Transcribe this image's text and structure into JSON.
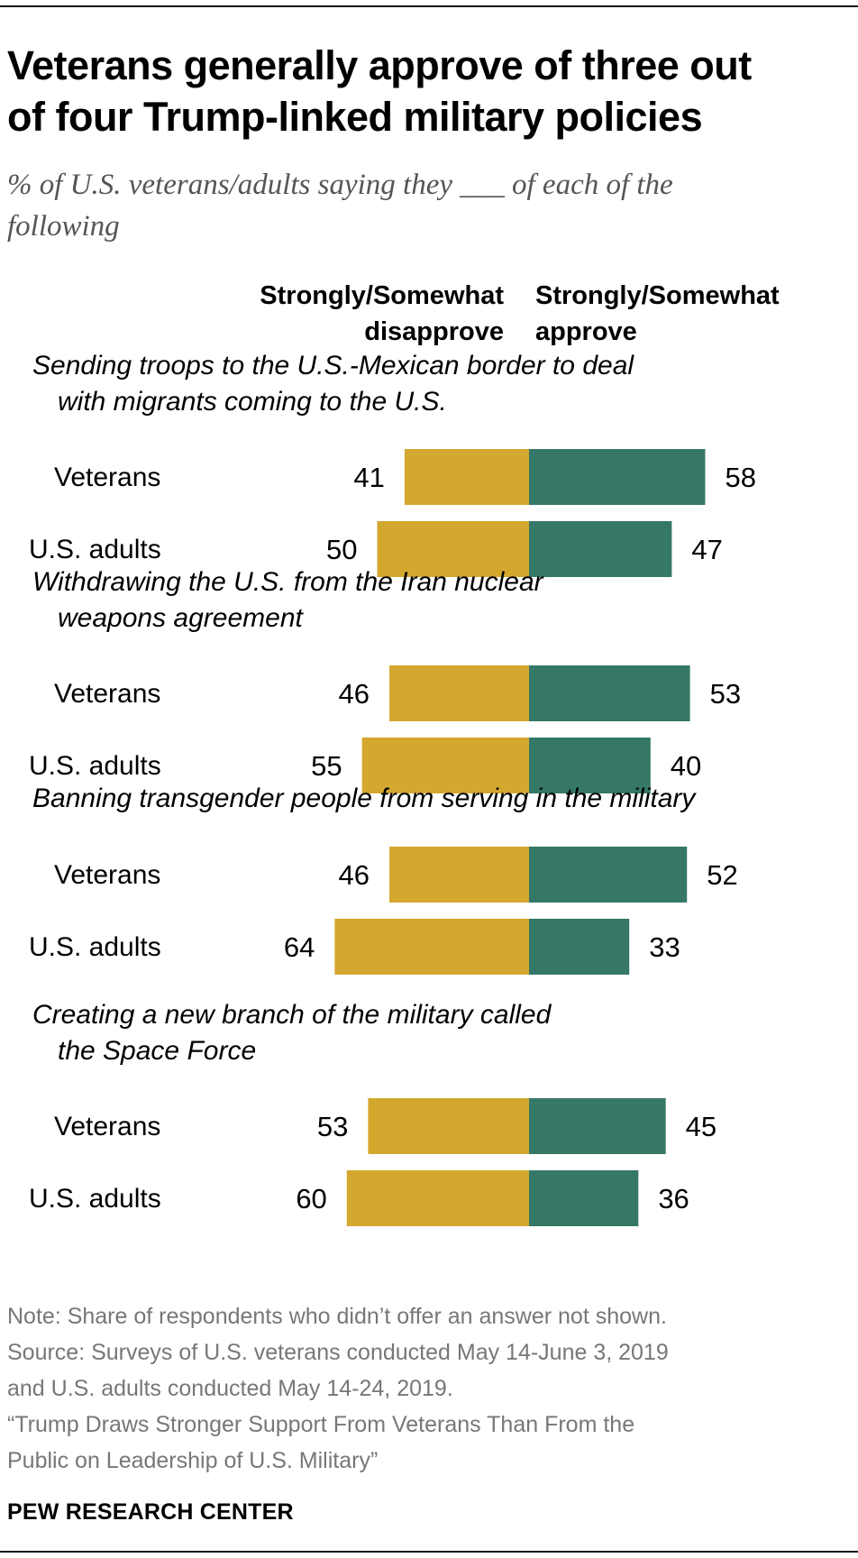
{
  "header": {
    "title_lines": [
      "Veterans generally approve of three out",
      "of four Trump-linked military policies"
    ],
    "subtitle_lines": [
      "% of U.S. veterans/adults saying they ___ of each of the",
      "following"
    ]
  },
  "legend": {
    "disapprove_lines": [
      "Strongly/Somewhat",
      "disapprove"
    ],
    "approve_lines": [
      "Strongly/Somewhat",
      "approve"
    ]
  },
  "colors": {
    "disapprove": "#d4a82f",
    "approve": "#367868"
  },
  "chart_data": {
    "type": "bar",
    "orientation": "horizontal-diverging",
    "series": [
      {
        "name": "Strongly/Somewhat disapprove",
        "side": "left"
      },
      {
        "name": "Strongly/Somewhat approve",
        "side": "right"
      }
    ],
    "groups": [
      {
        "label_lines": [
          "Sending troops to the U.S.-Mexican border to deal",
          "with migrants coming to the U.S."
        ],
        "rows": [
          {
            "label": "Veterans",
            "disapprove": 41,
            "approve": 58
          },
          {
            "label": "U.S. adults",
            "disapprove": 50,
            "approve": 47
          }
        ]
      },
      {
        "label_lines": [
          "Withdrawing the U.S. from the Iran nuclear",
          "weapons agreement"
        ],
        "rows": [
          {
            "label": "Veterans",
            "disapprove": 46,
            "approve": 53
          },
          {
            "label": "U.S. adults",
            "disapprove": 55,
            "approve": 40
          }
        ]
      },
      {
        "label_lines": [
          "Banning transgender people from serving in the military"
        ],
        "rows": [
          {
            "label": "Veterans",
            "disapprove": 46,
            "approve": 52
          },
          {
            "label": "U.S. adults",
            "disapprove": 64,
            "approve": 33
          }
        ]
      },
      {
        "label_lines": [
          "Creating a new branch of the military called",
          "the Space Force"
        ],
        "rows": [
          {
            "label": "Veterans",
            "disapprove": 53,
            "approve": 45
          },
          {
            "label": "U.S. adults",
            "disapprove": 60,
            "approve": 36
          }
        ]
      }
    ]
  },
  "notes": {
    "lines": [
      "Note: Share of respondents who didn’t offer an answer not shown.",
      "Source: Surveys of U.S. veterans conducted May 14-June 3, 2019",
      "and U.S. adults conducted May 14-24, 2019.",
      "“Trump Draws Stronger Support From Veterans Than From the",
      "Public on Leadership of U.S. Military”"
    ]
  },
  "brand": "PEW RESEARCH CENTER"
}
